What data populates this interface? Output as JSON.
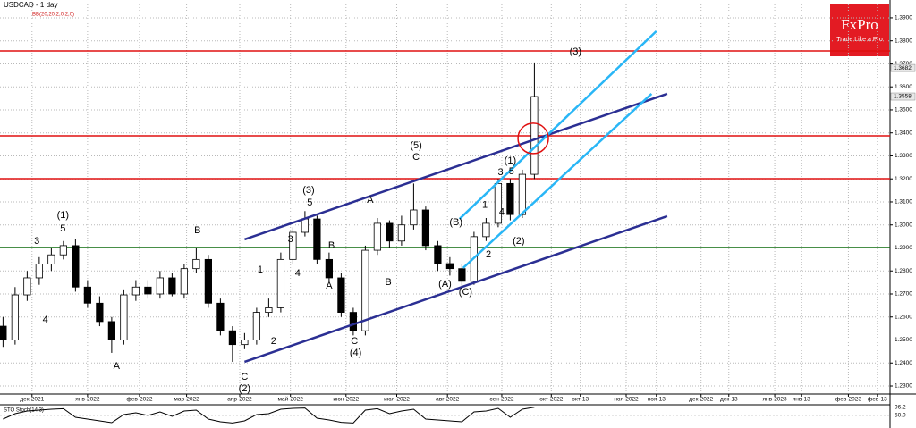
{
  "chart_data": {
    "type": "candlestick",
    "title": "USDCAD - 1 day",
    "subtitle": "BB(20,20,2,0,2,0)",
    "logo": {
      "name": "FxPro",
      "tagline": "Trade Like a Pro"
    },
    "open": [
      1.256,
      1.25,
      1.2696,
      1.277,
      1.283,
      1.287,
      1.291,
      1.273,
      1.266,
      1.258,
      1.25,
      1.2696,
      1.273,
      1.27,
      1.277,
      1.27,
      1.281,
      1.285,
      1.266,
      1.254,
      1.248,
      1.25,
      1.262,
      1.264,
      1.285,
      1.2968,
      1.3026,
      1.285,
      1.277,
      1.262,
      1.254,
      1.289,
      1.3007,
      1.293,
      1.3,
      1.3065,
      1.291,
      1.2832,
      1.281,
      1.2755,
      1.2949,
      1.3007,
      1.318,
      1.3045,
      1.322
    ],
    "high": [
      1.26,
      1.273,
      1.28,
      1.286,
      1.29,
      1.293,
      1.294,
      1.276,
      1.269,
      1.26,
      1.272,
      1.276,
      1.276,
      1.28,
      1.279,
      1.283,
      1.29,
      1.287,
      1.268,
      1.256,
      1.253,
      1.264,
      1.268,
      1.288,
      1.299,
      1.306,
      1.304,
      1.288,
      1.279,
      1.264,
      1.291,
      1.303,
      1.302,
      1.304,
      1.318,
      1.308,
      1.293,
      1.286,
      1.283,
      1.297,
      1.303,
      1.32,
      1.32,
      1.324,
      1.3706
    ],
    "low": [
      1.247,
      1.248,
      1.267,
      1.274,
      1.28,
      1.285,
      1.271,
      1.264,
      1.256,
      1.2444,
      1.248,
      1.267,
      1.268,
      1.268,
      1.269,
      1.268,
      1.279,
      1.264,
      1.252,
      1.2405,
      1.246,
      1.248,
      1.26,
      1.262,
      1.283,
      1.295,
      1.283,
      1.275,
      1.26,
      1.252,
      1.252,
      1.287,
      1.29,
      1.291,
      1.298,
      1.289,
      1.28,
      1.278,
      1.273,
      1.274,
      1.293,
      1.299,
      1.302,
      1.303,
      1.32
    ],
    "close": [
      1.25,
      1.2696,
      1.277,
      1.283,
      1.287,
      1.291,
      1.273,
      1.266,
      1.258,
      1.25,
      1.2696,
      1.273,
      1.27,
      1.277,
      1.27,
      1.281,
      1.285,
      1.266,
      1.254,
      1.248,
      1.25,
      1.262,
      1.264,
      1.285,
      1.2968,
      1.3026,
      1.285,
      1.277,
      1.262,
      1.254,
      1.289,
      1.3007,
      1.293,
      1.3,
      1.3065,
      1.291,
      1.2832,
      1.281,
      1.2755,
      1.2949,
      1.3007,
      1.318,
      1.3045,
      1.322,
      1.3558
    ],
    "xlim": [
      -0.25,
      73.45
    ],
    "xticks": [
      {
        "value": 2.4,
        "label": "дек-2021"
      },
      {
        "value": 7.0,
        "label": "янв-2022"
      },
      {
        "value": 11.3,
        "label": "фев-2022"
      },
      {
        "value": 15.2,
        "label": "мар-2022"
      },
      {
        "value": 19.6,
        "label": "апр-2022"
      },
      {
        "value": 23.8,
        "label": "май-2022"
      },
      {
        "value": 28.4,
        "label": "июн-2022"
      },
      {
        "value": 32.6,
        "label": "июл-2022"
      },
      {
        "value": 36.8,
        "label": "авг-2022"
      },
      {
        "value": 41.3,
        "label": "сен-2022"
      },
      {
        "value": 45.4,
        "label": "окт-2022"
      },
      {
        "value": 47.8,
        "label": "окт-13"
      },
      {
        "value": 51.6,
        "label": "ноя-2022"
      },
      {
        "value": 54.1,
        "label": "ноя-13"
      },
      {
        "value": 57.8,
        "label": "дек-2022"
      },
      {
        "value": 60.1,
        "label": "дек-13"
      },
      {
        "value": 63.9,
        "label": "янв-2023"
      },
      {
        "value": 66.1,
        "label": "янв-13"
      },
      {
        "value": 70.0,
        "label": "фев-2023"
      },
      {
        "value": 72.4,
        "label": "фев-13"
      }
    ],
    "ylim": [
      1.2269,
      1.3958
    ],
    "yticks": [
      {
        "value": 1.39,
        "label": "1.3900"
      },
      {
        "value": 1.38,
        "label": "1.3800"
      },
      {
        "value": 1.37,
        "label": "1.3700"
      },
      {
        "value": 1.36,
        "label": "1.3600"
      },
      {
        "value": 1.35,
        "label": "1.3500"
      },
      {
        "value": 1.34,
        "label": "1.3400"
      },
      {
        "value": 1.33,
        "label": "1.3300"
      },
      {
        "value": 1.32,
        "label": "1.3200"
      },
      {
        "value": 1.31,
        "label": "1.3100"
      },
      {
        "value": 1.3,
        "label": "1.3000"
      },
      {
        "value": 1.29,
        "label": "1.2900"
      },
      {
        "value": 1.28,
        "label": "1.2800"
      },
      {
        "value": 1.27,
        "label": "1.2700"
      },
      {
        "value": 1.26,
        "label": "1.2600"
      },
      {
        "value": 1.25,
        "label": "1.2500"
      },
      {
        "value": 1.24,
        "label": "1.2400"
      },
      {
        "value": 1.23,
        "label": "1.2300"
      }
    ],
    "grid": true,
    "up_color": "#ffffff",
    "down_color": "#000000",
    "price_labels": [
      {
        "value": 1.3682,
        "label": "1.3682"
      },
      {
        "value": 1.3558,
        "label": "1.3558"
      }
    ],
    "levels": [
      {
        "value": 1.3756,
        "color": "#e01010"
      },
      {
        "value": 1.3387,
        "color": "#e01010"
      },
      {
        "value": 1.3201,
        "color": "#e01010"
      },
      {
        "value": 1.2902,
        "color": "#0a6a0a"
      }
    ],
    "trendlines": [
      {
        "color": "#2b2f93",
        "x": [
          20.0,
          55.0
        ],
        "y": [
          1.2937,
          1.357
        ]
      },
      {
        "color": "#2b2f93",
        "x": [
          20.0,
          55.0
        ],
        "y": [
          1.2405,
          1.3038
        ]
      },
      {
        "color": "#29b6f6",
        "x": [
          37.8,
          54.1
        ],
        "y": [
          1.3026,
          1.3842
        ]
      },
      {
        "color": "#29b6f6",
        "x": [
          38.1,
          53.7
        ],
        "y": [
          1.2813,
          1.357
        ]
      }
    ],
    "circle": {
      "x": 43.9,
      "y": 1.3376,
      "color": "#e01010"
    },
    "annotations": [
      {
        "text": "(1)",
        "x": 4.96,
        "y": 1.3042
      },
      {
        "text": "5",
        "x": 4.96,
        "y": 1.2983
      },
      {
        "text": "3",
        "x": 2.8,
        "y": 1.2929
      },
      {
        "text": "4",
        "x": 3.5,
        "y": 1.2587
      },
      {
        "text": "A",
        "x": 9.4,
        "y": 1.2385
      },
      {
        "text": "B",
        "x": 16.1,
        "y": 1.2976
      },
      {
        "text": "C",
        "x": 20.0,
        "y": 1.2339
      },
      {
        "text": "(2)",
        "x": 20.0,
        "y": 1.2288
      },
      {
        "text": "1",
        "x": 21.3,
        "y": 1.2804
      },
      {
        "text": "2",
        "x": 22.4,
        "y": 1.2493
      },
      {
        "text": "3",
        "x": 23.8,
        "y": 1.2937
      },
      {
        "text": "4",
        "x": 24.4,
        "y": 1.2789
      },
      {
        "text": "(3)",
        "x": 25.3,
        "y": 1.315
      },
      {
        "text": "5",
        "x": 25.4,
        "y": 1.3096
      },
      {
        "text": "B",
        "x": 27.2,
        "y": 1.291
      },
      {
        "text": "A",
        "x": 27.0,
        "y": 1.2735
      },
      {
        "text": "C",
        "x": 29.1,
        "y": 1.2494
      },
      {
        "text": "(4)",
        "x": 29.2,
        "y": 1.2444
      },
      {
        "text": "A",
        "x": 30.4,
        "y": 1.3108
      },
      {
        "text": "B",
        "x": 31.9,
        "y": 1.275
      },
      {
        "text": "(5)",
        "x": 34.2,
        "y": 1.3345
      },
      {
        "text": "C",
        "x": 34.2,
        "y": 1.3294
      },
      {
        "text": "(B)",
        "x": 37.5,
        "y": 1.3011
      },
      {
        "text": "(A)",
        "x": 36.6,
        "y": 1.2743
      },
      {
        "text": "(C)",
        "x": 38.3,
        "y": 1.2708
      },
      {
        "text": "1",
        "x": 39.9,
        "y": 1.3085
      },
      {
        "text": "2",
        "x": 40.2,
        "y": 1.2871
      },
      {
        "text": "3",
        "x": 41.2,
        "y": 1.3228
      },
      {
        "text": "4",
        "x": 41.3,
        "y": 1.3054
      },
      {
        "text": "(1)",
        "x": 42.0,
        "y": 1.3278
      },
      {
        "text": "5",
        "x": 42.1,
        "y": 1.3232
      },
      {
        "text": "(2)",
        "x": 42.7,
        "y": 1.2929
      },
      {
        "text": "(3)",
        "x": 47.4,
        "y": 1.3752
      }
    ],
    "oscillator": {
      "name": "STO Stoch(14,3)",
      "color": "#000000",
      "values": [
        30,
        60,
        75,
        80,
        85,
        88,
        40,
        30,
        20,
        10,
        55,
        65,
        50,
        70,
        45,
        75,
        80,
        30,
        15,
        8,
        20,
        55,
        60,
        85,
        90,
        92,
        35,
        25,
        12,
        8,
        80,
        88,
        60,
        75,
        85,
        30,
        25,
        20,
        15,
        70,
        75,
        90,
        40,
        85,
        96.2
      ],
      "ylim": [
        0,
        100
      ],
      "yticks": [
        96.2,
        {
          "value": 50,
          "label": "50.0"
        }
      ]
    }
  }
}
